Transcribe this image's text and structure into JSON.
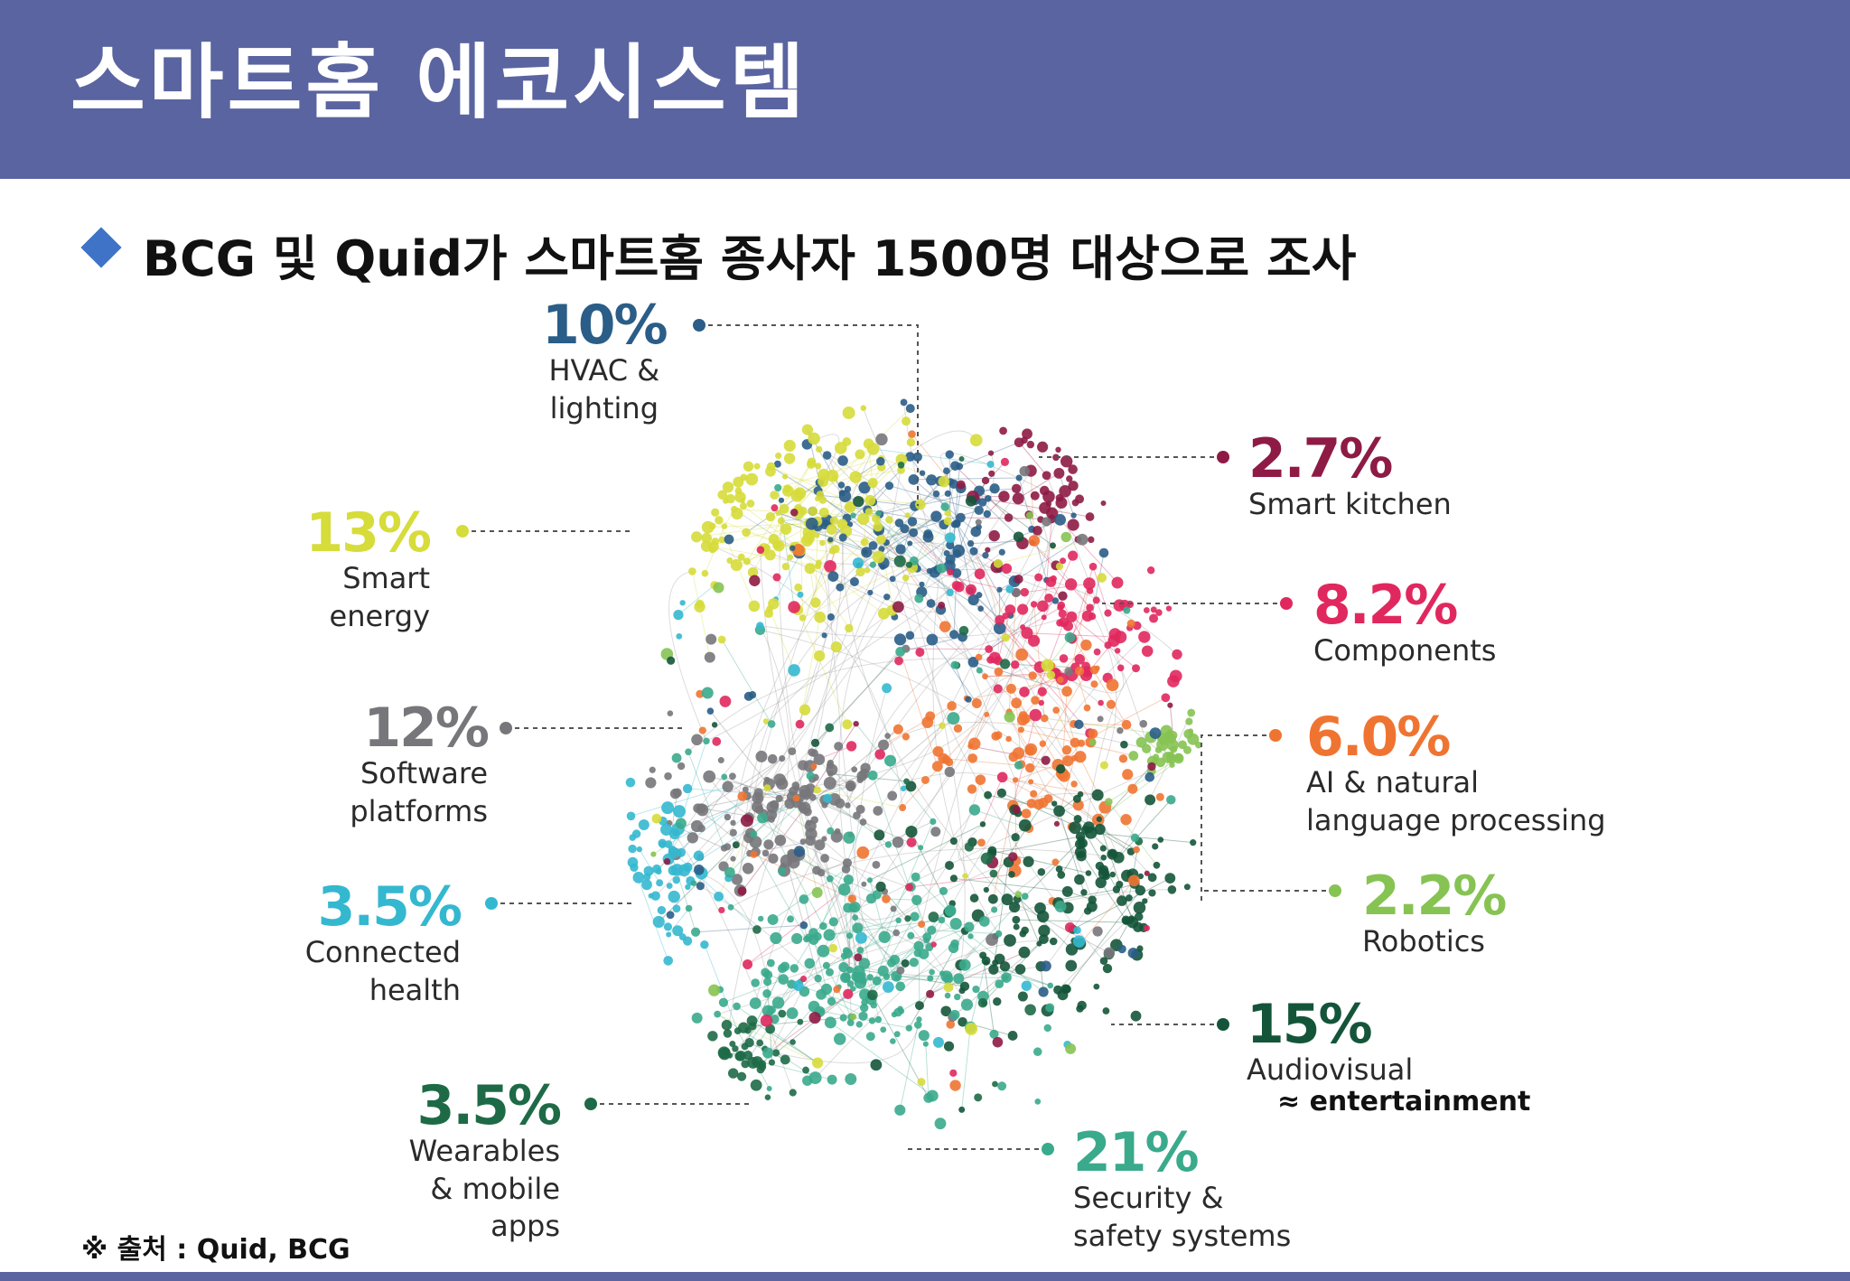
{
  "title": "스마트홈 에코시스템",
  "subtitle": "BCG 및 Quid가 스마트홈 종사자 1500명 대상으로 조사",
  "categories": [
    {
      "id": "hvac",
      "percent": "10%",
      "label_lines": [
        "HVAC &",
        "lighting"
      ],
      "color": "#2a5d87"
    },
    {
      "id": "kitchen",
      "percent": "2.7%",
      "label_lines": [
        "Smart kitchen"
      ],
      "color": "#8e1b45"
    },
    {
      "id": "energy",
      "percent": "13%",
      "label_lines": [
        "Smart",
        "energy"
      ],
      "color": "#d6dc3a"
    },
    {
      "id": "components",
      "percent": "8.2%",
      "label_lines": [
        "Components"
      ],
      "color": "#e0285e"
    },
    {
      "id": "software",
      "percent": "12%",
      "label_lines": [
        "Software",
        "platforms"
      ],
      "color": "#77777b"
    },
    {
      "id": "ai",
      "percent": "6.0%",
      "label_lines": [
        "AI & natural",
        "language processing"
      ],
      "color": "#ef7432"
    },
    {
      "id": "health",
      "percent": "3.5%",
      "label_lines": [
        "Connected",
        "health"
      ],
      "color": "#34b8cf"
    },
    {
      "id": "robotics",
      "percent": "2.2%",
      "label_lines": [
        "Robotics"
      ],
      "color": "#86c353"
    },
    {
      "id": "audiovisual",
      "percent": "15%",
      "label_lines": [
        "Audiovisual"
      ],
      "color": "#14553a"
    },
    {
      "id": "wearables",
      "percent": "3.5%",
      "label_lines": [
        "Wearables",
        "& mobile apps"
      ],
      "color": "#1e6a47"
    },
    {
      "id": "security",
      "percent": "21%",
      "label_lines": [
        "Security &",
        "safety systems"
      ],
      "color": "#3aaa8c"
    }
  ],
  "approx_note": "≈ entertainment",
  "source_note": "※ 출처 : Quid, BCG"
}
